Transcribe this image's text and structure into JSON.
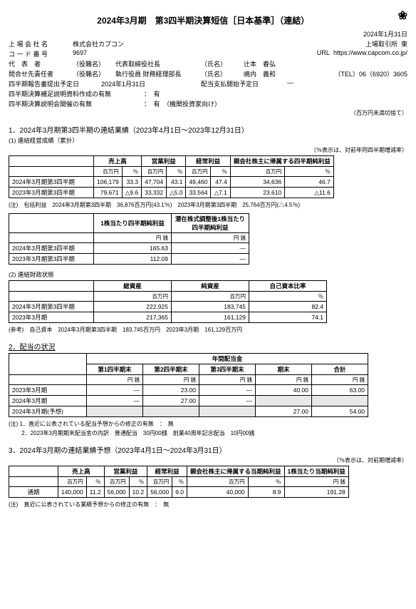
{
  "logo": "❀",
  "title": "2024年3月期　第3四半期決算短信［日本基準］（連結）",
  "issueDate": "2024年1月31日",
  "company": {
    "nameLbl": "上 場 会 社 名",
    "name": "株式会社カプコン",
    "exchLbl": "上場取引所",
    "exch": "東",
    "codeLbl": "コ ー ド 番 号",
    "code": "9697",
    "urlLbl": "URL",
    "url": "https://www.capcom.co.jp/",
    "repLbl": "代　表　者",
    "repRole": "（役職名）",
    "repTitle": "代表取締役社長",
    "repNameLbl": "（氏名）",
    "repName": "辻本　春弘",
    "contactLbl": "問合せ先責任者",
    "contactRole": "（役職名）",
    "contactTitle": "執行役員 財務経理部長",
    "contactNameLbl": "（氏名）",
    "contactName": "嶋内　義和",
    "telLbl": "（TEL）",
    "tel": "06（6920）3605",
    "filingLbl": "四半期報告書提出予定日",
    "filingDate": "2024年1月31日",
    "divDateLbl": "配当支払開始予定日",
    "divDate": "―",
    "supp1Lbl": "四半期決算補足説明資料作成の有無",
    "supp1": "：　有",
    "supp2Lbl": "四半期決算説明会開催の有無",
    "supp2": "：　有　（機関投資家向け）"
  },
  "roundingNote": "（百万円未満切捨て）",
  "s1": {
    "title": "1．2024年3月期第3四半期の連結業績（2023年4月1日～2023年12月31日）",
    "t1": {
      "sub": "(1) 連結経営成績（累計）",
      "pctNote": "（％表示は、対前年同四半期増減率）",
      "headers": [
        "売上高",
        "営業利益",
        "経常利益",
        "親会社株主に帰属する四半期純利益"
      ],
      "unitRow": [
        "百万円",
        "％",
        "百万円",
        "％",
        "百万円",
        "％",
        "百万円",
        "％"
      ],
      "rows": [
        {
          "label": "2024年3月期第3四半期",
          "cells": [
            "106,179",
            "33.3",
            "47,704",
            "43.1",
            "49,460",
            "47.4",
            "34,636",
            "46.7"
          ]
        },
        {
          "label": "2023年3月期第3四半期",
          "cells": [
            "79,671",
            "△9.6",
            "33,332",
            "△5.0",
            "33,564",
            "△7.1",
            "23,610",
            "△11.6"
          ]
        }
      ],
      "note": "(注)　包括利益　2024年3月期第3四半期　36,876百万円(43.1％)　2023年3月期第3四半期　25,764百万円(△4.5％)"
    },
    "t1b": {
      "headers": [
        "1株当たり四半期純利益",
        "潜在株式調整後1株当たり四半期純利益"
      ],
      "unitRow": [
        "円 銭",
        "円 銭"
      ],
      "rows": [
        {
          "label": "2024年3月期第3四半期",
          "cells": [
            "165.63",
            "―"
          ]
        },
        {
          "label": "2023年3月期第3四半期",
          "cells": [
            "112.09",
            "―"
          ]
        }
      ]
    },
    "t2": {
      "sub": "(2) 連結財政状態",
      "headers": [
        "総資産",
        "純資産",
        "自己資本比率"
      ],
      "unitRow": [
        "百万円",
        "百万円",
        "％"
      ],
      "rows": [
        {
          "label": "2024年3月期第3四半期",
          "cells": [
            "222,925",
            "183,745",
            "82.4"
          ]
        },
        {
          "label": "2023年3月期",
          "cells": [
            "217,365",
            "161,129",
            "74.1"
          ]
        }
      ],
      "note": "(参考)　自己資本　2024年3月期第3四半期　183,745百万円　2023年3月期　161,129百万円"
    }
  },
  "s2": {
    "title": "2．配当の状況",
    "groupHeader": "年間配当金",
    "headers": [
      "第1四半期末",
      "第2四半期末",
      "第3四半期末",
      "期末",
      "合計"
    ],
    "unitRow": [
      "円 銭",
      "円 銭",
      "円 銭",
      "円 銭",
      "円 銭"
    ],
    "rows": [
      {
        "label": "2023年3月期",
        "cells": [
          "―",
          "23.00",
          "―",
          "40.00",
          "63.00"
        ]
      },
      {
        "label": "2024年3月期",
        "cells": [
          "―",
          "27.00",
          "―",
          "",
          ""
        ],
        "shadeFrom": 3
      },
      {
        "label": "2024年3月期(予想)",
        "cells": [
          "",
          "",
          "",
          "27.00",
          "54.00"
        ],
        "shadeTo": 2
      }
    ],
    "note1": "(注) 1．直近に公表されている配当予想からの修正の有無　：　無",
    "note2": "　　 2．2023年3月期期末配当金の内訳　普通配当　30円00銭　創業40周年記念配当　10円00銭"
  },
  "s3": {
    "title": "3．2024年3月期の連結業績予想（2023年4月1日～2024年3月31日）",
    "pctNote": "（％表示は、対前期増減率）",
    "headers": [
      "売上高",
      "営業利益",
      "経常利益",
      "親会社株主に帰属する当期純利益",
      "1株当たり当期純利益"
    ],
    "unitRow": [
      "百万円",
      "％",
      "百万円",
      "％",
      "百万円",
      "％",
      "百万円",
      "％",
      "円 銭"
    ],
    "rows": [
      {
        "label": "通期",
        "cells": [
          "140,000",
          "11.2",
          "56,000",
          "10.2",
          "56,000",
          "9.0",
          "40,000",
          "8.9",
          "191.28"
        ]
      }
    ],
    "note": "(注)　直近に公表されている業績予想からの修正の有無　：　無"
  }
}
